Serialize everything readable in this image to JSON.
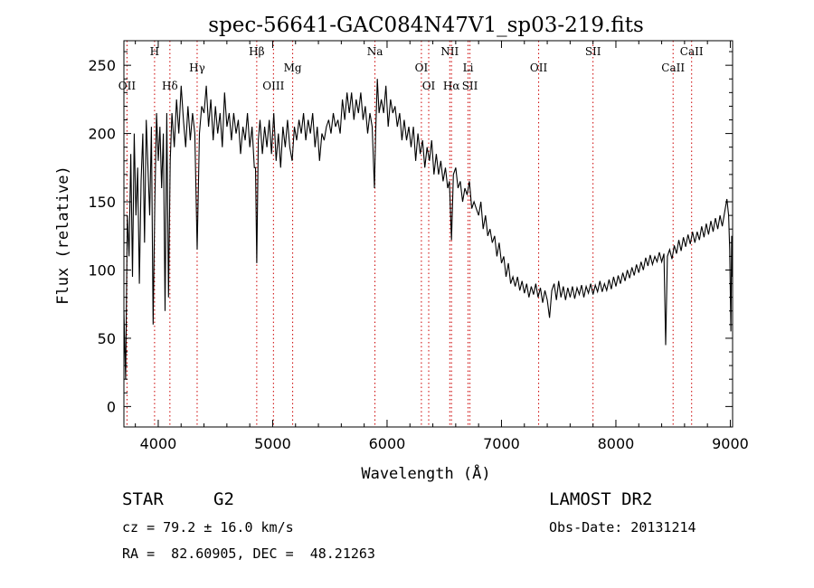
{
  "chart_data": {
    "type": "line",
    "title": "spec-56641-GAC084N47V1_sp03-219.fits",
    "xlabel": "Wavelength (Å)",
    "ylabel": "Flux (relative)",
    "xlim": [
      3700,
      9020
    ],
    "ylim": [
      -15,
      268
    ],
    "xticks": [
      4000,
      5000,
      6000,
      7000,
      8000,
      9000
    ],
    "yticks": [
      0,
      50,
      100,
      150,
      200,
      250
    ],
    "line_color": "#000000",
    "marker_color": "#cc0000",
    "grid": false,
    "spectrum_points": [
      [
        3700,
        70
      ],
      [
        3715,
        20
      ],
      [
        3730,
        140
      ],
      [
        3745,
        110
      ],
      [
        3760,
        185
      ],
      [
        3775,
        95
      ],
      [
        3790,
        200
      ],
      [
        3805,
        140
      ],
      [
        3820,
        175
      ],
      [
        3835,
        90
      ],
      [
        3850,
        165
      ],
      [
        3865,
        200
      ],
      [
        3880,
        120
      ],
      [
        3895,
        210
      ],
      [
        3910,
        175
      ],
      [
        3925,
        140
      ],
      [
        3940,
        205
      ],
      [
        3955,
        60
      ],
      [
        3970,
        150
      ],
      [
        3985,
        215
      ],
      [
        4000,
        180
      ],
      [
        4015,
        205
      ],
      [
        4030,
        160
      ],
      [
        4045,
        200
      ],
      [
        4060,
        70
      ],
      [
        4075,
        215
      ],
      [
        4090,
        80
      ],
      [
        4105,
        180
      ],
      [
        4120,
        215
      ],
      [
        4140,
        190
      ],
      [
        4160,
        225
      ],
      [
        4180,
        200
      ],
      [
        4200,
        235
      ],
      [
        4220,
        210
      ],
      [
        4240,
        190
      ],
      [
        4260,
        220
      ],
      [
        4280,
        195
      ],
      [
        4300,
        215
      ],
      [
        4320,
        200
      ],
      [
        4340,
        115
      ],
      [
        4360,
        200
      ],
      [
        4380,
        220
      ],
      [
        4400,
        215
      ],
      [
        4420,
        235
      ],
      [
        4440,
        205
      ],
      [
        4460,
        225
      ],
      [
        4480,
        195
      ],
      [
        4500,
        220
      ],
      [
        4520,
        200
      ],
      [
        4540,
        215
      ],
      [
        4560,
        190
      ],
      [
        4580,
        230
      ],
      [
        4600,
        205
      ],
      [
        4620,
        215
      ],
      [
        4640,
        195
      ],
      [
        4660,
        215
      ],
      [
        4680,
        200
      ],
      [
        4700,
        210
      ],
      [
        4720,
        185
      ],
      [
        4740,
        205
      ],
      [
        4760,
        195
      ],
      [
        4780,
        215
      ],
      [
        4800,
        190
      ],
      [
        4820,
        205
      ],
      [
        4840,
        175
      ],
      [
        4850,
        175
      ],
      [
        4861,
        105
      ],
      [
        4875,
        195
      ],
      [
        4890,
        210
      ],
      [
        4910,
        185
      ],
      [
        4930,
        205
      ],
      [
        4950,
        190
      ],
      [
        4970,
        210
      ],
      [
        4990,
        185
      ],
      [
        5010,
        215
      ],
      [
        5030,
        180
      ],
      [
        5050,
        200
      ],
      [
        5070,
        175
      ],
      [
        5090,
        205
      ],
      [
        5110,
        190
      ],
      [
        5130,
        210
      ],
      [
        5150,
        190
      ],
      [
        5170,
        180
      ],
      [
        5190,
        205
      ],
      [
        5210,
        195
      ],
      [
        5230,
        210
      ],
      [
        5250,
        200
      ],
      [
        5270,
        215
      ],
      [
        5290,
        195
      ],
      [
        5310,
        210
      ],
      [
        5330,
        200
      ],
      [
        5350,
        215
      ],
      [
        5370,
        190
      ],
      [
        5390,
        205
      ],
      [
        5410,
        180
      ],
      [
        5430,
        200
      ],
      [
        5450,
        195
      ],
      [
        5470,
        205
      ],
      [
        5490,
        210
      ],
      [
        5510,
        200
      ],
      [
        5530,
        215
      ],
      [
        5550,
        205
      ],
      [
        5570,
        210
      ],
      [
        5590,
        200
      ],
      [
        5610,
        225
      ],
      [
        5630,
        210
      ],
      [
        5650,
        230
      ],
      [
        5670,
        215
      ],
      [
        5690,
        230
      ],
      [
        5710,
        210
      ],
      [
        5730,
        225
      ],
      [
        5750,
        215
      ],
      [
        5770,
        230
      ],
      [
        5790,
        210
      ],
      [
        5810,
        220
      ],
      [
        5830,
        200
      ],
      [
        5850,
        215
      ],
      [
        5870,
        205
      ],
      [
        5890,
        160
      ],
      [
        5900,
        200
      ],
      [
        5915,
        240
      ],
      [
        5930,
        215
      ],
      [
        5950,
        225
      ],
      [
        5970,
        215
      ],
      [
        5990,
        235
      ],
      [
        6010,
        205
      ],
      [
        6030,
        225
      ],
      [
        6050,
        215
      ],
      [
        6070,
        220
      ],
      [
        6090,
        205
      ],
      [
        6110,
        215
      ],
      [
        6130,
        195
      ],
      [
        6150,
        210
      ],
      [
        6170,
        195
      ],
      [
        6190,
        205
      ],
      [
        6210,
        190
      ],
      [
        6230,
        205
      ],
      [
        6250,
        180
      ],
      [
        6270,
        200
      ],
      [
        6290,
        185
      ],
      [
        6310,
        195
      ],
      [
        6330,
        175
      ],
      [
        6350,
        190
      ],
      [
        6370,
        180
      ],
      [
        6390,
        195
      ],
      [
        6410,
        170
      ],
      [
        6430,
        185
      ],
      [
        6450,
        170
      ],
      [
        6470,
        180
      ],
      [
        6490,
        165
      ],
      [
        6510,
        175
      ],
      [
        6530,
        160
      ],
      [
        6545,
        165
      ],
      [
        6563,
        122
      ],
      [
        6580,
        170
      ],
      [
        6600,
        175
      ],
      [
        6620,
        160
      ],
      [
        6640,
        165
      ],
      [
        6660,
        150
      ],
      [
        6680,
        160
      ],
      [
        6700,
        155
      ],
      [
        6720,
        165
      ],
      [
        6740,
        145
      ],
      [
        6760,
        150
      ],
      [
        6780,
        145
      ],
      [
        6800,
        140
      ],
      [
        6820,
        150
      ],
      [
        6840,
        130
      ],
      [
        6860,
        140
      ],
      [
        6880,
        125
      ],
      [
        6900,
        130
      ],
      [
        6920,
        120
      ],
      [
        6940,
        125
      ],
      [
        6960,
        110
      ],
      [
        6980,
        120
      ],
      [
        7000,
        105
      ],
      [
        7020,
        110
      ],
      [
        7040,
        95
      ],
      [
        7060,
        105
      ],
      [
        7080,
        90
      ],
      [
        7100,
        95
      ],
      [
        7120,
        88
      ],
      [
        7140,
        95
      ],
      [
        7160,
        85
      ],
      [
        7180,
        92
      ],
      [
        7200,
        83
      ],
      [
        7220,
        90
      ],
      [
        7240,
        80
      ],
      [
        7260,
        88
      ],
      [
        7280,
        82
      ],
      [
        7300,
        90
      ],
      [
        7320,
        80
      ],
      [
        7340,
        87
      ],
      [
        7360,
        76
      ],
      [
        7380,
        85
      ],
      [
        7400,
        78
      ],
      [
        7420,
        65
      ],
      [
        7440,
        85
      ],
      [
        7460,
        90
      ],
      [
        7480,
        78
      ],
      [
        7500,
        92
      ],
      [
        7520,
        80
      ],
      [
        7540,
        88
      ],
      [
        7560,
        78
      ],
      [
        7580,
        87
      ],
      [
        7600,
        80
      ],
      [
        7620,
        88
      ],
      [
        7640,
        79
      ],
      [
        7660,
        87
      ],
      [
        7680,
        82
      ],
      [
        7700,
        89
      ],
      [
        7720,
        80
      ],
      [
        7740,
        88
      ],
      [
        7760,
        83
      ],
      [
        7780,
        90
      ],
      [
        7800,
        82
      ],
      [
        7820,
        89
      ],
      [
        7840,
        84
      ],
      [
        7860,
        92
      ],
      [
        7880,
        84
      ],
      [
        7900,
        90
      ],
      [
        7920,
        85
      ],
      [
        7940,
        93
      ],
      [
        7960,
        86
      ],
      [
        7980,
        95
      ],
      [
        8000,
        88
      ],
      [
        8020,
        96
      ],
      [
        8040,
        90
      ],
      [
        8060,
        98
      ],
      [
        8080,
        92
      ],
      [
        8100,
        100
      ],
      [
        8120,
        94
      ],
      [
        8140,
        102
      ],
      [
        8160,
        96
      ],
      [
        8180,
        104
      ],
      [
        8200,
        98
      ],
      [
        8220,
        106
      ],
      [
        8240,
        100
      ],
      [
        8260,
        109
      ],
      [
        8280,
        103
      ],
      [
        8300,
        111
      ],
      [
        8320,
        104
      ],
      [
        8340,
        110
      ],
      [
        8360,
        106
      ],
      [
        8380,
        113
      ],
      [
        8400,
        106
      ],
      [
        8420,
        112
      ],
      [
        8435,
        45
      ],
      [
        8450,
        110
      ],
      [
        8470,
        115
      ],
      [
        8490,
        108
      ],
      [
        8510,
        118
      ],
      [
        8530,
        112
      ],
      [
        8550,
        122
      ],
      [
        8570,
        114
      ],
      [
        8590,
        124
      ],
      [
        8610,
        117
      ],
      [
        8630,
        126
      ],
      [
        8650,
        119
      ],
      [
        8670,
        128
      ],
      [
        8690,
        120
      ],
      [
        8710,
        128
      ],
      [
        8730,
        122
      ],
      [
        8750,
        132
      ],
      [
        8770,
        124
      ],
      [
        8790,
        134
      ],
      [
        8810,
        126
      ],
      [
        8830,
        136
      ],
      [
        8850,
        128
      ],
      [
        8870,
        138
      ],
      [
        8890,
        130
      ],
      [
        8910,
        140
      ],
      [
        8930,
        132
      ],
      [
        8950,
        142
      ],
      [
        8970,
        152
      ],
      [
        8985,
        140
      ],
      [
        8995,
        115
      ],
      [
        9005,
        55
      ],
      [
        9012,
        125
      ],
      [
        9018,
        95
      ]
    ],
    "spectral_lines": [
      {
        "label": "OII",
        "x": 3727,
        "label_y": 235
      },
      {
        "label": "H",
        "x": 3968,
        "label_y": 260
      },
      {
        "label": "Hδ",
        "x": 4102,
        "label_y": 235
      },
      {
        "label": "Hγ",
        "x": 4340,
        "label_y": 248
      },
      {
        "label": "Hβ",
        "x": 4861,
        "label_y": 260
      },
      {
        "label": "OIII",
        "x": 5007,
        "label_y": 235
      },
      {
        "label": "Mg",
        "x": 5175,
        "label_y": 248
      },
      {
        "label": "Na",
        "x": 5894,
        "label_y": 260
      },
      {
        "label": "OI",
        "x": 6300,
        "label_y": 248
      },
      {
        "label": "OI",
        "x": 6364,
        "label_y": 235
      },
      {
        "label": "NII",
        "x": 6548,
        "label_y": 260
      },
      {
        "label": "Hα",
        "x": 6563,
        "label_y": 235
      },
      {
        "label": "Li",
        "x": 6708,
        "label_y": 248
      },
      {
        "label": "SII",
        "x": 6724,
        "label_y": 235
      },
      {
        "label": "OII",
        "x": 7325,
        "label_y": 248
      },
      {
        "label": "SII",
        "x": 7800,
        "label_y": 260
      },
      {
        "label": "CaII",
        "x": 8500,
        "label_y": 248
      },
      {
        "label": "CaII",
        "x": 8662,
        "label_y": 260
      }
    ]
  },
  "info": {
    "object_class": "STAR",
    "subclass": "G2",
    "survey": "LAMOST DR2",
    "redshift_line": "cz = 79.2 ± 16.0 km/s",
    "obs_date_line": "Obs-Date: 20131214",
    "coords_line": "RA =  82.60905, DEC =  48.21263"
  }
}
